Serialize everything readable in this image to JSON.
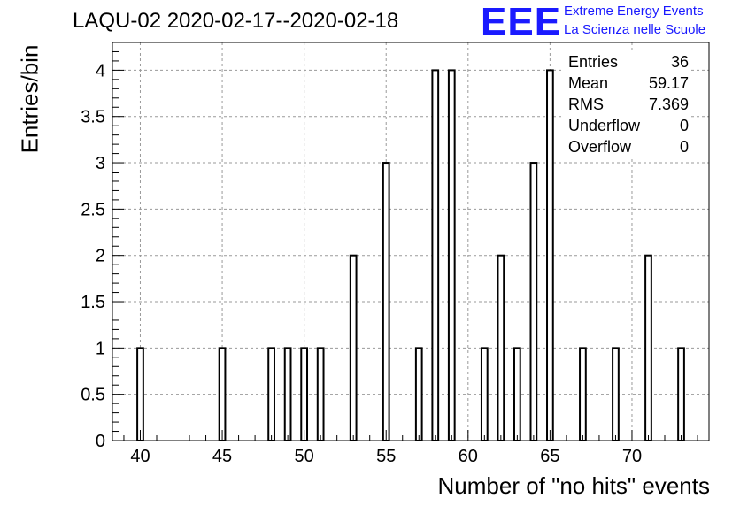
{
  "header": {
    "title": "LAQU-02 2020-02-17--2020-02-18",
    "logo_mark": "EEE",
    "logo_line1": "Extreme Energy Events",
    "logo_line2": "La Scienza nelle Scuole"
  },
  "stats": [
    {
      "label": "Entries",
      "value": "36"
    },
    {
      "label": "Mean",
      "value": "59.17"
    },
    {
      "label": "RMS",
      "value": "7.369"
    },
    {
      "label": "Underflow",
      "value": "0"
    },
    {
      "label": "Overflow",
      "value": "0"
    }
  ],
  "colors": {
    "logo": "#1a1aff",
    "bars": "#000000",
    "grid": "#9a9a9a"
  },
  "chart_data": {
    "type": "bar",
    "xlabel": "Number of \"no hits\" events",
    "ylabel": "Entries/bin",
    "xlim": [
      38.3,
      74.7
    ],
    "ylim": [
      0,
      4.3
    ],
    "grid": true,
    "bin_width": 0.364,
    "xticks": [
      40,
      45,
      50,
      55,
      60,
      65,
      70
    ],
    "yticks": [
      0,
      0.5,
      1,
      1.5,
      2,
      2.5,
      3,
      3.5,
      4
    ],
    "ytick_labels": [
      "0",
      "0.5",
      "1",
      "1.5",
      "2",
      "2.5",
      "3",
      "3.5",
      "4"
    ],
    "bins": [
      {
        "x": 40,
        "count": 1
      },
      {
        "x": 45,
        "count": 1
      },
      {
        "x": 48,
        "count": 1
      },
      {
        "x": 49,
        "count": 1
      },
      {
        "x": 50,
        "count": 1
      },
      {
        "x": 51,
        "count": 1
      },
      {
        "x": 53,
        "count": 2
      },
      {
        "x": 55,
        "count": 3
      },
      {
        "x": 57,
        "count": 1
      },
      {
        "x": 58,
        "count": 4
      },
      {
        "x": 59,
        "count": 4
      },
      {
        "x": 61,
        "count": 1
      },
      {
        "x": 62,
        "count": 2
      },
      {
        "x": 63,
        "count": 1
      },
      {
        "x": 64,
        "count": 3
      },
      {
        "x": 65,
        "count": 4
      },
      {
        "x": 67,
        "count": 1
      },
      {
        "x": 69,
        "count": 1
      },
      {
        "x": 71,
        "count": 2
      },
      {
        "x": 73,
        "count": 1
      }
    ]
  }
}
